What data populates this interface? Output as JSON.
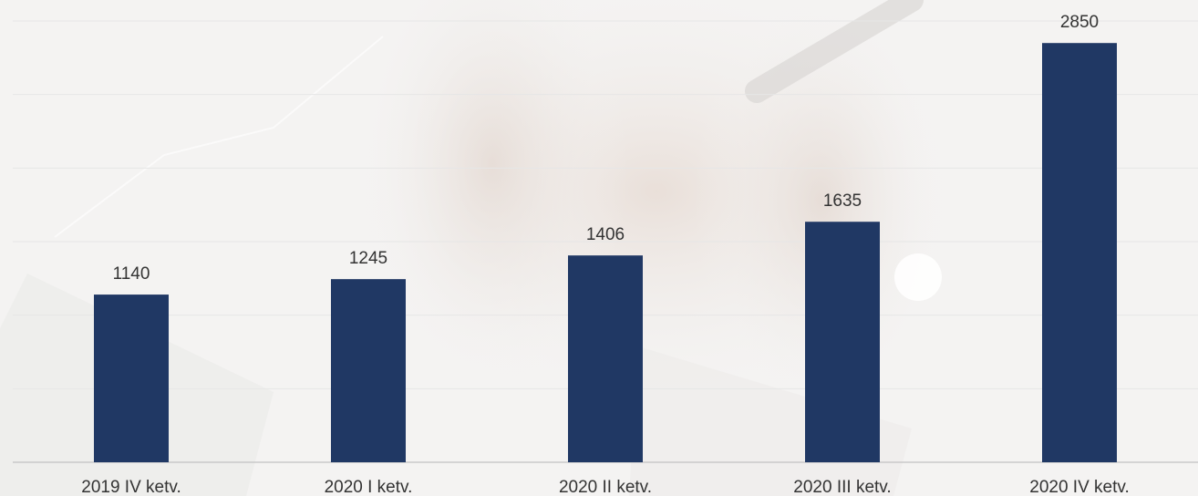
{
  "colors": {
    "bar": "#203864",
    "gridline": "#e6e6e6",
    "axis": "#c9c9c9",
    "text": "#333333",
    "background": "#f4f3f2"
  },
  "chart_data": {
    "type": "bar",
    "title": "",
    "xlabel": "",
    "ylabel": "",
    "categories": [
      "2019 IV ketv.",
      "2020 I ketv.",
      "2020 II ketv.",
      "2020 III ketv.",
      "2020 IV ketv."
    ],
    "values": [
      1140,
      1245,
      1406,
      1635,
      2850
    ],
    "ylim": [
      0,
      3000
    ],
    "grid": true,
    "legend": "none",
    "data_labels": true
  }
}
